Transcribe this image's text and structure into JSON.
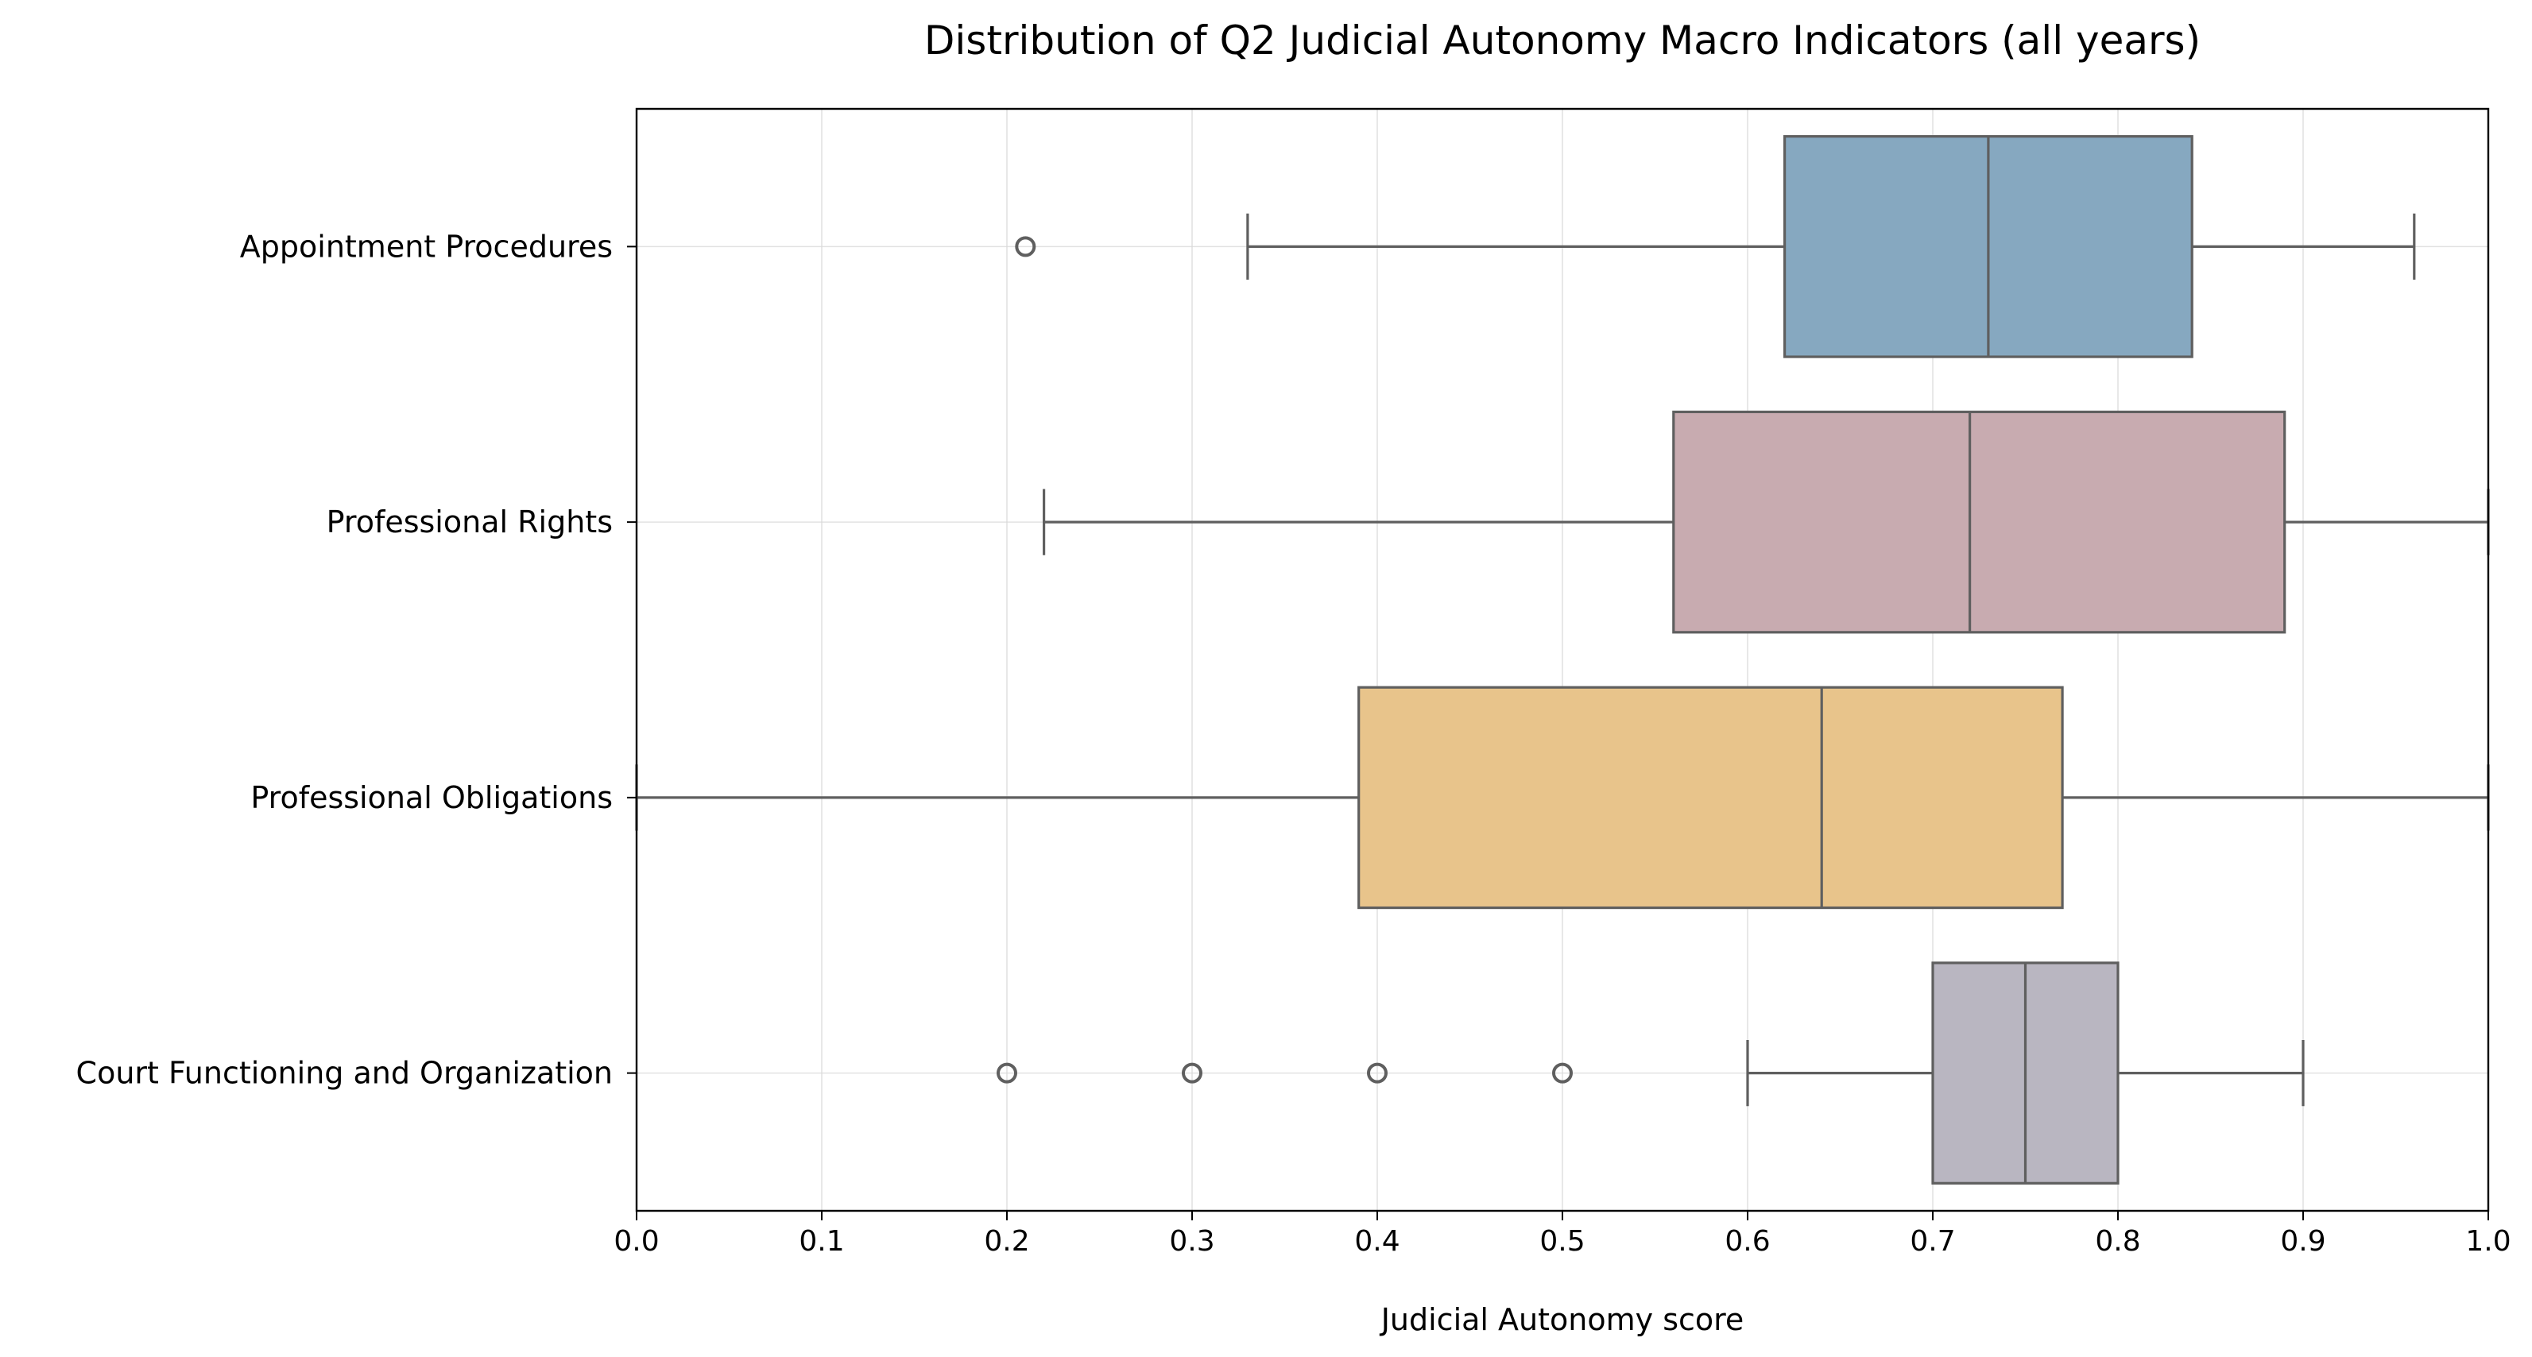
{
  "chart_data": {
    "type": "boxplot",
    "orientation": "horizontal",
    "title": "Distribution of Q2 Judicial Autonomy Macro Indicators (all years)",
    "xlabel": "Judicial Autonomy score",
    "ylabel": "",
    "xlim": [
      0.0,
      1.0
    ],
    "x_ticks": [
      "0.0",
      "0.1",
      "0.2",
      "0.3",
      "0.4",
      "0.5",
      "0.6",
      "0.7",
      "0.8",
      "0.9",
      "1.0"
    ],
    "grid": true,
    "categories": [
      "Appointment Procedures",
      "Professional Rights",
      "Professional Obligations",
      "Court Functioning and Organization"
    ],
    "series": [
      {
        "category": "Appointment Procedures",
        "whisker_low": 0.33,
        "q1": 0.62,
        "median": 0.73,
        "q3": 0.84,
        "whisker_high": 0.96,
        "outliers": [
          0.21
        ],
        "color": "#86a8c0"
      },
      {
        "category": "Professional Rights",
        "whisker_low": 0.22,
        "q1": 0.56,
        "median": 0.72,
        "q3": 0.89,
        "whisker_high": 1.0,
        "outliers": [],
        "color": "#c8abb0"
      },
      {
        "category": "Professional Obligations",
        "whisker_low": 0.0,
        "q1": 0.39,
        "median": 0.64,
        "q3": 0.77,
        "whisker_high": 1.0,
        "outliers": [],
        "color": "#e8c48b"
      },
      {
        "category": "Court Functioning and Organization",
        "whisker_low": 0.6,
        "q1": 0.7,
        "median": 0.75,
        "q3": 0.8,
        "whisker_high": 0.9,
        "outliers": [
          0.2,
          0.3,
          0.4,
          0.5
        ],
        "color": "#b9b6c1"
      }
    ]
  }
}
